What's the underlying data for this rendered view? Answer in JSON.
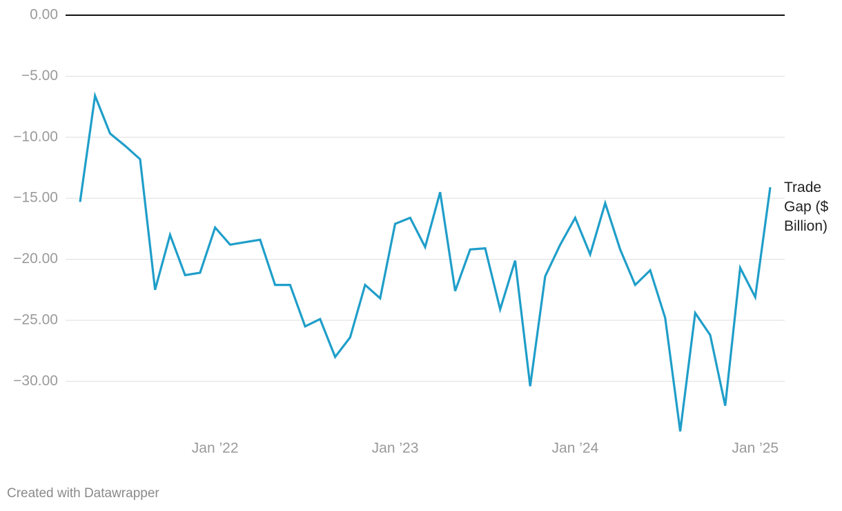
{
  "chart_data": {
    "type": "line",
    "x": [
      "2021-04",
      "2021-05",
      "2021-06",
      "2021-07",
      "2021-08",
      "2021-09",
      "2021-10",
      "2021-11",
      "2021-12",
      "2022-01",
      "2022-02",
      "2022-03",
      "2022-04",
      "2022-05",
      "2022-06",
      "2022-07",
      "2022-08",
      "2022-09",
      "2022-10",
      "2022-11",
      "2022-12",
      "2023-01",
      "2023-02",
      "2023-03",
      "2023-04",
      "2023-05",
      "2023-06",
      "2023-07",
      "2023-08",
      "2023-09",
      "2023-10",
      "2023-11",
      "2023-12",
      "2024-01",
      "2024-02",
      "2024-03",
      "2024-04",
      "2024-05",
      "2024-06",
      "2024-07",
      "2024-08",
      "2024-09",
      "2024-10",
      "2024-11",
      "2024-12",
      "2025-01",
      "2025-02"
    ],
    "series": [
      {
        "name": "Trade Gap ($ Billion)",
        "color": "#1f9ec9",
        "values": [
          -15.3,
          -6.6,
          -9.7,
          -10.7,
          -11.8,
          -22.5,
          -18.0,
          -21.3,
          -21.1,
          -17.4,
          -18.8,
          -18.6,
          -18.4,
          -22.1,
          -22.1,
          -25.5,
          -24.9,
          -28.0,
          -26.4,
          -22.1,
          -23.2,
          -17.1,
          -16.6,
          -19.0,
          -14.5,
          -22.6,
          -19.2,
          -19.1,
          -24.1,
          -20.1,
          -30.4,
          -21.4,
          -18.8,
          -16.6,
          -19.6,
          -15.4,
          -19.2,
          -22.1,
          -20.9,
          -24.8,
          -34.1,
          -24.4,
          -26.2,
          -32.0,
          -20.7,
          -23.1,
          -14.1
        ]
      }
    ],
    "xlim": [
      "2021-04",
      "2025-02"
    ],
    "xticks": [
      {
        "value": "2022-01",
        "label": "Jan ’22"
      },
      {
        "value": "2023-01",
        "label": "Jan ’23"
      },
      {
        "value": "2024-01",
        "label": "Jan ’24"
      },
      {
        "value": "2025-01",
        "label": "Jan ’25"
      }
    ],
    "ylim": [
      -34.4,
      0
    ],
    "yticks": [
      {
        "value": 0,
        "label": "0.00"
      },
      {
        "value": -5,
        "label": "−5.00"
      },
      {
        "value": -10,
        "label": "−10.00"
      },
      {
        "value": -15,
        "label": "−15.00"
      },
      {
        "value": -20,
        "label": "−20.00"
      },
      {
        "value": -25,
        "label": "−25.00"
      },
      {
        "value": -30,
        "label": "−30.00"
      }
    ],
    "grid": true,
    "credit": "Created with Datawrapper"
  }
}
